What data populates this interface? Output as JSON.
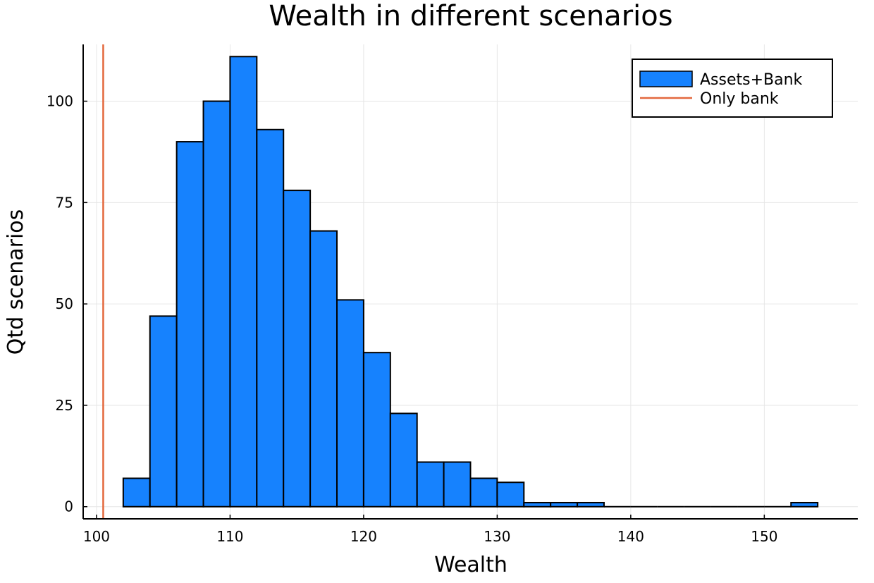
{
  "chart_data": {
    "type": "bar",
    "title": "Wealth in different scenarios",
    "xlabel": "Wealth",
    "ylabel": "Qtd scenarios",
    "xlim": [
      99,
      157
    ],
    "ylim": [
      -3,
      114
    ],
    "xticks": [
      100,
      110,
      120,
      130,
      140,
      150
    ],
    "yticks": [
      0,
      25,
      50,
      75,
      100
    ],
    "grid": true,
    "legend_position": "top-right",
    "bin_width": 2,
    "series": [
      {
        "name": "Assets+Bank",
        "kind": "histogram",
        "color": "#1682fe",
        "bin_starts": [
          102,
          104,
          106,
          108,
          110,
          112,
          114,
          116,
          118,
          120,
          122,
          124,
          126,
          128,
          130,
          132,
          134,
          136,
          138,
          140,
          142,
          144,
          146,
          148,
          150,
          152
        ],
        "counts": [
          7,
          47,
          90,
          100,
          111,
          93,
          78,
          68,
          51,
          38,
          23,
          11,
          11,
          7,
          6,
          1,
          1,
          1,
          0,
          0,
          0,
          0,
          0,
          0,
          0,
          1
        ]
      },
      {
        "name": "Only bank",
        "kind": "vline",
        "color": "#e3683d",
        "x": 100.5
      }
    ]
  }
}
